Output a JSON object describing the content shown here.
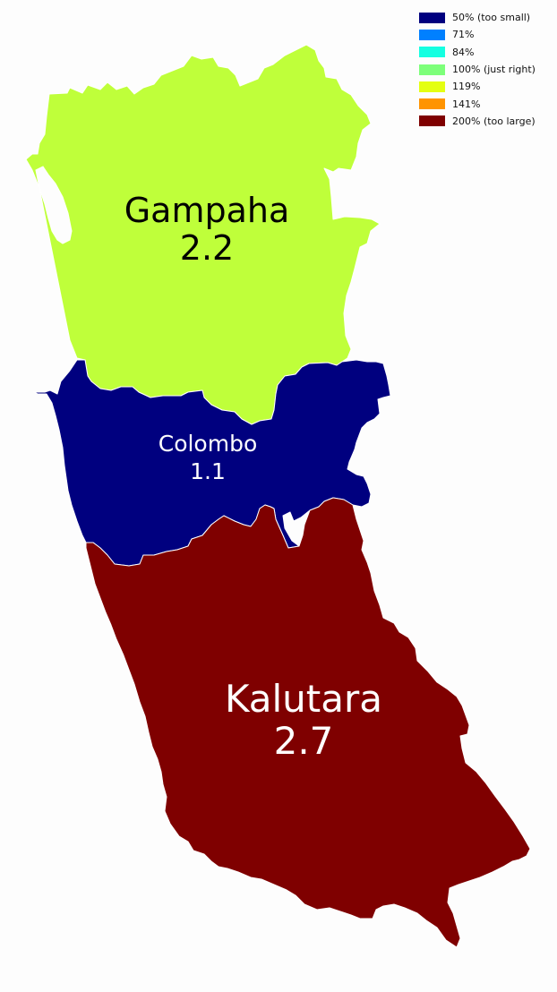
{
  "legend": [
    {
      "label": "50% (too small)",
      "color": "#00007f"
    },
    {
      "label": "71%",
      "color": "#0080ff"
    },
    {
      "label": "84%",
      "color": "#15ffe1"
    },
    {
      "label": "100% (just right)",
      "color": "#7dff7a"
    },
    {
      "label": "119%",
      "color": "#e4ff12"
    },
    {
      "label": "141%",
      "color": "#ff9400"
    },
    {
      "label": "200% (too large)",
      "color": "#7f0000"
    }
  ],
  "districts": [
    {
      "id": "gampaha",
      "name": "Gampaha",
      "value": "2.2",
      "color": "#bfff3a",
      "text_color": "#000000"
    },
    {
      "id": "colombo",
      "name": "Colombo",
      "value": "1.1",
      "color": "#00007f",
      "text_color": "#ffffff"
    },
    {
      "id": "kalutara",
      "name": "Kalutara",
      "value": "2.7",
      "color": "#7f0000",
      "text_color": "#ffffff"
    }
  ]
}
